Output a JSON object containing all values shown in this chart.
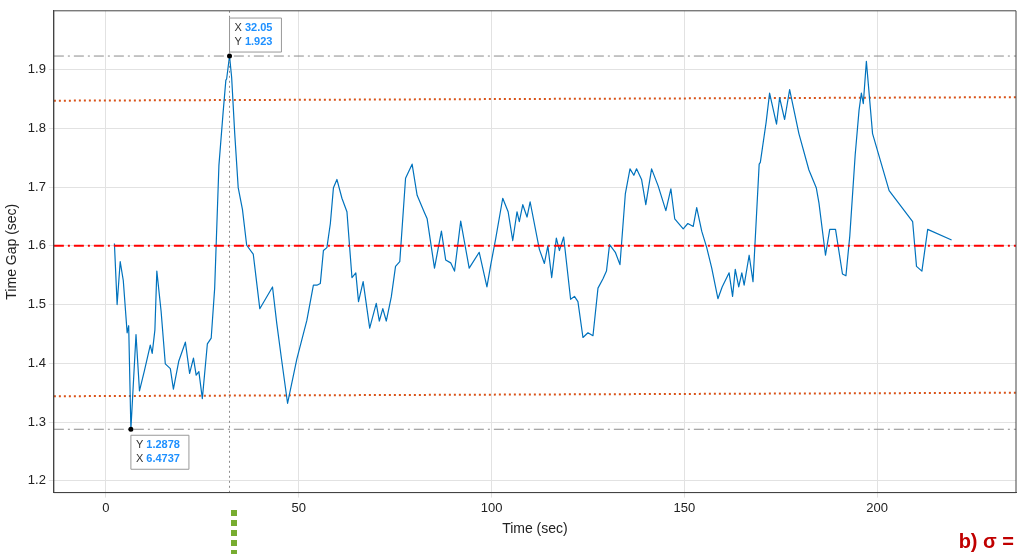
{
  "chart_data": {
    "type": "line",
    "xlabel": "Time (sec)",
    "ylabel": "Time Gap (sec)",
    "xlim": [
      -13.5,
      236
    ],
    "ylim": [
      1.18,
      2.0
    ],
    "xticks": [
      0,
      50,
      100,
      150,
      200
    ],
    "yticks": [
      1.2,
      1.3,
      1.4,
      1.5,
      1.6,
      1.7,
      1.8,
      1.9
    ],
    "grid": true,
    "legend": false,
    "marker": "none",
    "series": [
      {
        "color": "#0072bd",
        "line_style": "solid",
        "x": [
          2.2,
          2.9,
          3.7,
          4.5,
          5.5,
          5.9,
          6.4737,
          7.8,
          8.7,
          10.0,
          11.5,
          12.0,
          12.7,
          13.2,
          14.3,
          15.4,
          16.7,
          17.5,
          18.9,
          20.6,
          21.7,
          22.7,
          23.4,
          24.1,
          25.0,
          26.3,
          27.3,
          28.2,
          29.3,
          30.4,
          31.1,
          31.3,
          32.05,
          32.6,
          33.4,
          34.3,
          35.4,
          36.5,
          38.2,
          39.9,
          43.2,
          44.3,
          45.6,
          47.1,
          49.5,
          52.1,
          53.8,
          54.7,
          55.6,
          56.4,
          57.3,
          58.2,
          59.0,
          59.9,
          61.2,
          62.5,
          63.8,
          64.8,
          65.5,
          66.7,
          68.4,
          70.1,
          70.9,
          71.8,
          72.7,
          74.0,
          75.1,
          76.2,
          77.7,
          79.4,
          80.7,
          82.5,
          83.3,
          85.2,
          87.0,
          88.1,
          89.4,
          90.4,
          92.0,
          94.2,
          96.8,
          98.8,
          99.8,
          101.1,
          102.9,
          104.3,
          105.5,
          106.6,
          107.2,
          108.1,
          109.2,
          110.0,
          112.4,
          113.7,
          114.6,
          115.6,
          116.8,
          117.6,
          118.7,
          120.5,
          121.5,
          122.4,
          123.7,
          125.0,
          126.3,
          127.6,
          128.9,
          129.8,
          130.6,
          132.1,
          133.3,
          134.7,
          135.9,
          136.9,
          137.6,
          138.9,
          140.0,
          141.5,
          143.2,
          145.2,
          146.5,
          147.5,
          149.7,
          150.9,
          152.3,
          153.2,
          154.5,
          155.8,
          157.1,
          158.7,
          159.8,
          161.6,
          162.5,
          163.2,
          164.1,
          164.9,
          165.5,
          166.8,
          167.8,
          169.4,
          169.7,
          171.2,
          172.1,
          173.9,
          174.7,
          176.0,
          177.3,
          179.7,
          182.3,
          184.2,
          184.9,
          186.6,
          187.7,
          189.2,
          191.0,
          191.9,
          192.9,
          194.3,
          195.3,
          195.9,
          196.4,
          197.2,
          198.8,
          203.1,
          209.2,
          210.2,
          211.6,
          213.1,
          219.3
        ],
        "values": [
          1.604,
          1.5,
          1.573,
          1.541,
          1.452,
          1.464,
          1.2878,
          1.449,
          1.353,
          1.388,
          1.431,
          1.417,
          1.457,
          1.557,
          1.489,
          1.399,
          1.391,
          1.356,
          1.404,
          1.436,
          1.383,
          1.409,
          1.38,
          1.386,
          1.34,
          1.433,
          1.443,
          1.528,
          1.737,
          1.828,
          1.882,
          1.884,
          1.923,
          1.887,
          1.791,
          1.699,
          1.662,
          1.601,
          1.586,
          1.493,
          1.53,
          1.468,
          1.404,
          1.332,
          1.407,
          1.473,
          1.533,
          1.533,
          1.536,
          1.592,
          1.597,
          1.638,
          1.699,
          1.713,
          1.681,
          1.658,
          1.546,
          1.554,
          1.505,
          1.539,
          1.46,
          1.502,
          1.472,
          1.493,
          1.472,
          1.513,
          1.565,
          1.573,
          1.715,
          1.739,
          1.686,
          1.658,
          1.646,
          1.562,
          1.625,
          1.576,
          1.571,
          1.557,
          1.642,
          1.562,
          1.589,
          1.53,
          1.568,
          1.613,
          1.681,
          1.658,
          1.609,
          1.658,
          1.641,
          1.67,
          1.649,
          1.675,
          1.594,
          1.57,
          1.6,
          1.546,
          1.613,
          1.592,
          1.615,
          1.509,
          1.514,
          1.505,
          1.444,
          1.452,
          1.447,
          1.528,
          1.544,
          1.557,
          1.602,
          1.589,
          1.568,
          1.689,
          1.731,
          1.72,
          1.731,
          1.713,
          1.67,
          1.731,
          1.702,
          1.66,
          1.697,
          1.646,
          1.629,
          1.638,
          1.633,
          1.665,
          1.625,
          1.597,
          1.562,
          1.51,
          1.53,
          1.554,
          1.514,
          1.56,
          1.53,
          1.554,
          1.533,
          1.584,
          1.539,
          1.739,
          1.742,
          1.81,
          1.86,
          1.807,
          1.852,
          1.815,
          1.866,
          1.791,
          1.729,
          1.699,
          1.673,
          1.584,
          1.628,
          1.628,
          1.552,
          1.549,
          1.617,
          1.755,
          1.831,
          1.86,
          1.842,
          1.914,
          1.791,
          1.694,
          1.641,
          1.565,
          1.557,
          1.628,
          1.61
        ]
      },
      {
        "color": "#d95319",
        "line_style": "dotted",
        "x": [
          -13.5,
          236
        ],
        "values": [
          1.847,
          1.853
        ]
      },
      {
        "color": "#d95319",
        "line_style": "dotted",
        "x": [
          -13.5,
          236
        ],
        "values": [
          1.344,
          1.35
        ]
      }
    ],
    "ref_lines": [
      {
        "axis": "y",
        "value": 1.6,
        "color": "#ff0000",
        "line_style": "dashdot"
      },
      {
        "axis": "y",
        "value": 1.923,
        "color": "#8c8c8c",
        "line_style": "dashdot"
      },
      {
        "axis": "y",
        "value": 1.2878,
        "color": "#8c8c8c",
        "line_style": "dashdot"
      },
      {
        "axis": "x",
        "value": 32.05,
        "color": "#8c8c8c",
        "line_style": "dotted"
      }
    ],
    "annotations": [
      {
        "text": "X 32.05\nY 1.923",
        "x": 32.05,
        "y": 1.923
      },
      {
        "text": "Y 1.2878\nX 6.4737",
        "x": 6.4737,
        "y": 1.2878
      },
      "b) σ ="
    ]
  }
}
